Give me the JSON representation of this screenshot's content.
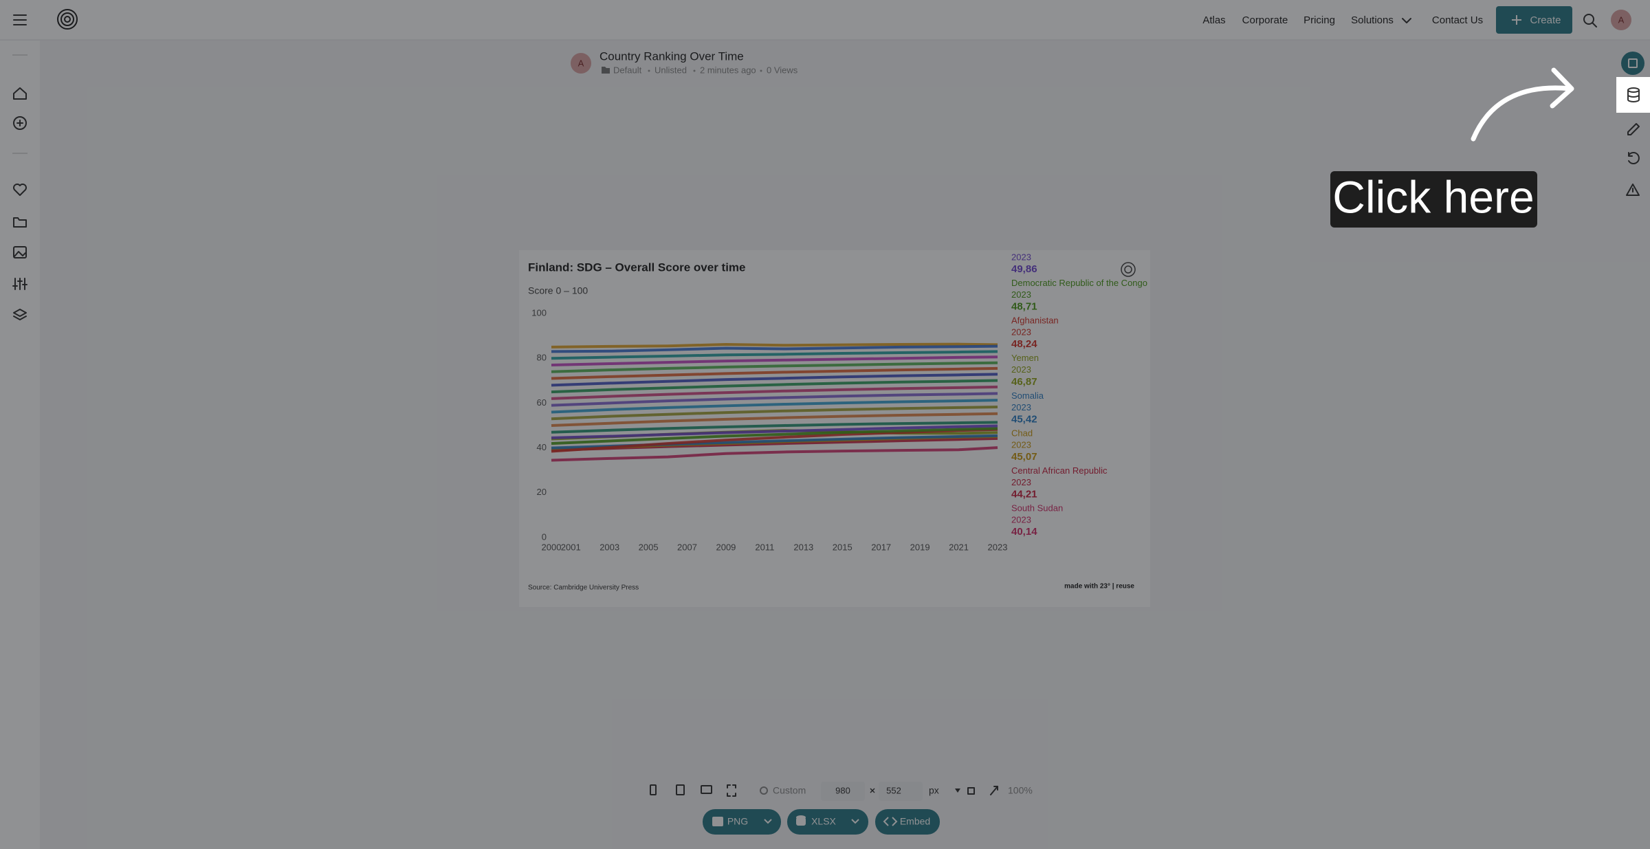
{
  "header": {
    "nav": [
      "Atlas",
      "Corporate",
      "Pricing",
      "Solutions",
      "Contact Us"
    ],
    "create": "Create",
    "avatar": "A"
  },
  "document": {
    "title": "Country Ranking Over Time",
    "avatar": "A",
    "folder": "Default",
    "visibility": "Unlisted",
    "updated": "2 minutes ago",
    "views": "0 Views"
  },
  "chart_data": {
    "type": "line",
    "title": "Finland: SDG – Overall Score over time",
    "subtitle": "Score 0 – 100",
    "x": [
      2000,
      2003,
      2006,
      2009,
      2012,
      2015,
      2018,
      2021,
      2023
    ],
    "xlim": [
      2000,
      2023
    ],
    "xticks": [
      2000,
      2001,
      2003,
      2005,
      2007,
      2009,
      2011,
      2013,
      2015,
      2017,
      2019,
      2021,
      2023
    ],
    "ylim": [
      0,
      100
    ],
    "yticks": [
      0,
      20,
      40,
      60,
      80,
      100
    ],
    "grid": false,
    "series": [
      {
        "color": "#7048d0",
        "values": [
          44.5,
          45.2,
          46.0,
          46.8,
          47.5,
          48.2,
          48.9,
          49.5,
          49.86
        ],
        "value_labels": {
          "8": "49,86"
        }
      },
      {
        "name": "Democratic Republic of the Congo",
        "color": "#4c9a1c",
        "values": [
          42.0,
          43.1,
          44.2,
          45.3,
          46.1,
          46.9,
          47.6,
          48.3,
          48.71
        ],
        "value_labels": {
          "8": "48,71"
        }
      },
      {
        "name": "Afghanistan",
        "color": "#d2352c",
        "values": [
          38.5,
          40.2,
          42.0,
          43.5,
          44.8,
          46.0,
          46.9,
          47.8,
          48.24
        ],
        "value_labels": {
          "8": "48,24"
        }
      },
      {
        "name": "Yemen",
        "color": "#93a61c",
        "values": [
          44.0,
          45.0,
          46.1,
          47.0,
          47.8,
          47.2,
          46.6,
          46.5,
          46.87
        ],
        "value_labels": {
          "8": "46,87"
        }
      },
      {
        "name": "Somalia",
        "color": "#2f7fc4",
        "values": [
          40.0,
          40.8,
          41.6,
          42.4,
          43.2,
          43.9,
          44.6,
          45.1,
          45.42
        ],
        "value_labels": {
          "8": "45,42"
        }
      },
      {
        "name": "Chad",
        "color": "#c99a14",
        "values": [
          39.5,
          40.3,
          41.2,
          42.0,
          42.8,
          43.5,
          44.2,
          44.8,
          45.07
        ],
        "value_labels": {
          "8": "45,07"
        }
      },
      {
        "name": "Central African Republic",
        "color": "#c82443",
        "values": [
          39.0,
          39.8,
          40.6,
          41.3,
          42.0,
          42.6,
          43.2,
          43.8,
          44.21
        ],
        "value_labels": {
          "8": "44,21"
        }
      },
      {
        "name": "South Sudan",
        "color": "#d2306a",
        "values": [
          34.5,
          35.3,
          36.0,
          37.5,
          38.2,
          38.6,
          38.9,
          39.2,
          40.14
        ],
        "value_labels": {
          "8": "40,14"
        }
      },
      {
        "color": "#e0a020",
        "values": [
          85,
          85.3,
          85.5,
          86.2,
          85.8,
          86.0,
          86.2,
          86.3,
          86.1
        ]
      },
      {
        "color": "#3a6fd0",
        "values": [
          83,
          83.2,
          83.8,
          84.5,
          84.2,
          84.6,
          85.0,
          85.2,
          85.4
        ]
      },
      {
        "color": "#20a0a0",
        "values": [
          80,
          80.5,
          81,
          81.5,
          81.8,
          82.2,
          82.5,
          82.8,
          83
        ]
      },
      {
        "color": "#c040c0",
        "values": [
          77,
          77.6,
          78.2,
          78.8,
          79.2,
          79.6,
          80,
          80.4,
          80.6
        ]
      },
      {
        "color": "#50b050",
        "values": [
          74,
          74.8,
          75.5,
          76.1,
          76.6,
          77,
          77.4,
          77.8,
          78
        ]
      },
      {
        "color": "#e06030",
        "values": [
          71,
          71.8,
          72.5,
          73.2,
          73.8,
          74.3,
          74.8,
          75.2,
          75.5
        ]
      },
      {
        "color": "#4050c0",
        "values": [
          68,
          68.9,
          69.7,
          70.5,
          71.1,
          71.7,
          72.2,
          72.6,
          72.9
        ]
      },
      {
        "color": "#2a9d5a",
        "values": [
          65,
          66,
          66.8,
          67.6,
          68.3,
          68.9,
          69.4,
          69.8,
          70.1
        ]
      },
      {
        "color": "#d04080",
        "values": [
          62,
          63,
          63.9,
          64.7,
          65.4,
          66,
          66.5,
          66.9,
          67.2
        ]
      },
      {
        "color": "#8060d0",
        "values": [
          59,
          60,
          61,
          61.8,
          62.5,
          63.1,
          63.6,
          64,
          64.3
        ]
      },
      {
        "color": "#30a0d0",
        "values": [
          56,
          57.1,
          58,
          58.8,
          59.5,
          60.1,
          60.6,
          61,
          61.3
        ]
      },
      {
        "color": "#a0a030",
        "values": [
          53,
          54.1,
          55,
          55.8,
          56.5,
          57.1,
          57.6,
          58,
          58.3
        ]
      },
      {
        "color": "#e08040",
        "values": [
          50,
          51,
          52,
          52.8,
          53.5,
          54.1,
          54.6,
          55,
          55.3
        ]
      },
      {
        "color": "#209070",
        "values": [
          47,
          47.9,
          48.7,
          49.4,
          50,
          50.5,
          50.9,
          51.2,
          51.4
        ]
      }
    ],
    "source": "Source: Cambridge University Press",
    "credit": "made with 23° | reuse"
  },
  "toolbar": {
    "preset": "Custom",
    "width": 980,
    "height": 552,
    "unit": "px",
    "zoom": "100%"
  },
  "export": [
    "PNG",
    "XLSX",
    "Embed"
  ],
  "callout": "Click here"
}
